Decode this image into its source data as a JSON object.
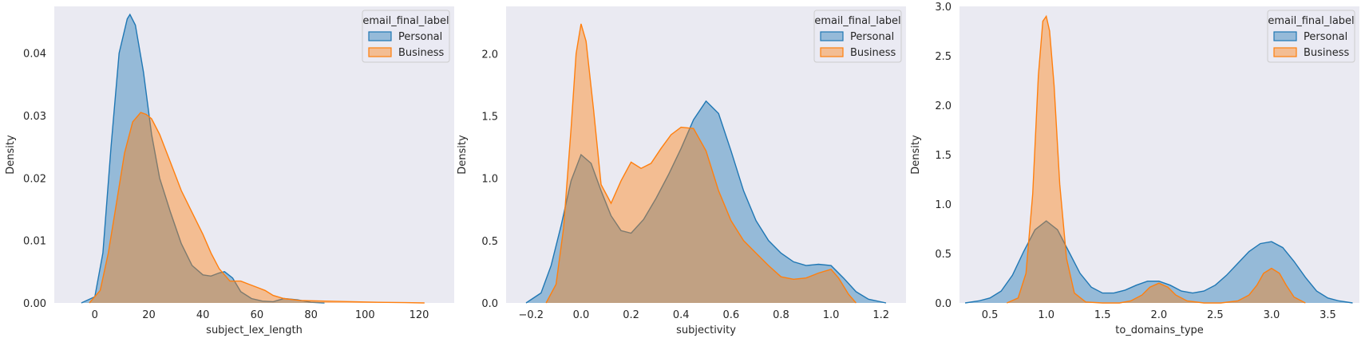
{
  "colors": {
    "personal": "#1f77b4",
    "business": "#ff7f0e"
  },
  "chart_data": [
    {
      "type": "area",
      "xlabel": "subject_lex_length",
      "ylabel": "Density",
      "xlim": [
        -15,
        133
      ],
      "ylim": [
        0,
        0.0475
      ],
      "xticks": [
        0,
        20,
        40,
        60,
        80,
        100,
        120
      ],
      "xtick_labels": [
        "0",
        "20",
        "40",
        "60",
        "80",
        "100",
        "120"
      ],
      "yticks": [
        0,
        0.01,
        0.02,
        0.03,
        0.04
      ],
      "ytick_labels": [
        "0.00",
        "0.01",
        "0.02",
        "0.03",
        "0.04"
      ],
      "grid": false,
      "legend": {
        "title": "email_final_label",
        "placement": "top-right"
      },
      "series": [
        {
          "name": "Personal",
          "x": [
            -5,
            0,
            3,
            6,
            9,
            12,
            13,
            15,
            18,
            21,
            24,
            28,
            32,
            36,
            40,
            43,
            46,
            48,
            51,
            54,
            58,
            62,
            66,
            70,
            75,
            80,
            85
          ],
          "y": [
            0,
            0.001,
            0.008,
            0.025,
            0.04,
            0.0455,
            0.0462,
            0.0445,
            0.037,
            0.027,
            0.02,
            0.0145,
            0.0095,
            0.006,
            0.0045,
            0.0043,
            0.0048,
            0.005,
            0.004,
            0.0018,
            0.0007,
            0.0003,
            0.0002,
            0.0007,
            0.0005,
            0.0001,
            0
          ]
        },
        {
          "name": "Business",
          "x": [
            -2,
            2,
            5,
            8,
            11,
            14,
            17,
            19,
            21,
            24,
            28,
            32,
            36,
            40,
            43,
            46,
            50,
            54,
            57,
            60,
            63,
            66,
            70,
            76,
            85,
            95,
            105,
            115,
            122
          ],
          "y": [
            0,
            0.002,
            0.008,
            0.016,
            0.024,
            0.029,
            0.0305,
            0.0302,
            0.0295,
            0.027,
            0.0225,
            0.018,
            0.0145,
            0.011,
            0.008,
            0.0055,
            0.0035,
            0.0035,
            0.003,
            0.0025,
            0.002,
            0.0012,
            0.0007,
            0.0004,
            0.0003,
            0.0002,
            0.0001,
            5e-05,
            0
          ]
        }
      ]
    },
    {
      "type": "area",
      "xlabel": "subjectivity",
      "ylabel": "Density",
      "xlim": [
        -0.3,
        1.3
      ],
      "ylim": [
        0,
        2.38
      ],
      "xticks": [
        -0.2,
        0,
        0.2,
        0.4,
        0.6,
        0.8,
        1.0,
        1.2
      ],
      "xtick_labels": [
        "−0.2",
        "0.0",
        "0.2",
        "0.4",
        "0.6",
        "0.8",
        "1.0",
        "1.2"
      ],
      "yticks": [
        0,
        0.5,
        1.0,
        1.5,
        2.0
      ],
      "ytick_labels": [
        "0.0",
        "0.5",
        "1.0",
        "1.5",
        "2.0"
      ],
      "grid": false,
      "legend": {
        "title": "email_final_label",
        "placement": "top-right"
      },
      "series": [
        {
          "name": "Personal",
          "x": [
            -0.22,
            -0.16,
            -0.12,
            -0.08,
            -0.04,
            0.0,
            0.04,
            0.08,
            0.12,
            0.16,
            0.2,
            0.25,
            0.3,
            0.35,
            0.4,
            0.45,
            0.5,
            0.55,
            0.6,
            0.65,
            0.7,
            0.75,
            0.8,
            0.85,
            0.9,
            0.95,
            1.0,
            1.05,
            1.1,
            1.15,
            1.22
          ],
          "y": [
            0,
            0.08,
            0.3,
            0.62,
            0.98,
            1.19,
            1.12,
            0.9,
            0.7,
            0.58,
            0.56,
            0.67,
            0.84,
            1.03,
            1.24,
            1.47,
            1.62,
            1.52,
            1.22,
            0.9,
            0.66,
            0.5,
            0.4,
            0.33,
            0.3,
            0.31,
            0.3,
            0.2,
            0.09,
            0.03,
            0
          ]
        },
        {
          "name": "Business",
          "x": [
            -0.14,
            -0.1,
            -0.07,
            -0.04,
            -0.02,
            0.0,
            0.02,
            0.05,
            0.08,
            0.12,
            0.16,
            0.2,
            0.24,
            0.28,
            0.32,
            0.36,
            0.4,
            0.45,
            0.5,
            0.55,
            0.6,
            0.65,
            0.7,
            0.75,
            0.8,
            0.85,
            0.9,
            0.95,
            1.0,
            1.03,
            1.07,
            1.1
          ],
          "y": [
            0,
            0.15,
            0.6,
            1.4,
            2.0,
            2.24,
            2.1,
            1.55,
            0.95,
            0.8,
            0.98,
            1.13,
            1.08,
            1.12,
            1.24,
            1.35,
            1.41,
            1.4,
            1.22,
            0.9,
            0.66,
            0.5,
            0.4,
            0.3,
            0.21,
            0.19,
            0.2,
            0.24,
            0.27,
            0.2,
            0.07,
            0
          ]
        }
      ]
    },
    {
      "type": "area",
      "xlabel": "to_domains_type",
      "ylabel": "Density",
      "xlim": [
        0.23,
        3.78
      ],
      "ylim": [
        0,
        3.0
      ],
      "xticks": [
        0.5,
        1.0,
        1.5,
        2.0,
        2.5,
        3.0,
        3.5
      ],
      "xtick_labels": [
        "0.5",
        "1.0",
        "1.5",
        "2.0",
        "2.5",
        "3.0",
        "3.5"
      ],
      "yticks": [
        0,
        0.5,
        1.0,
        1.5,
        2.0,
        2.5,
        3.0
      ],
      "ytick_labels": [
        "0.0",
        "0.5",
        "1.0",
        "1.5",
        "2.0",
        "2.5",
        "3.0"
      ],
      "grid": false,
      "legend": {
        "title": "email_final_label",
        "placement": "top-right"
      },
      "series": [
        {
          "name": "Personal",
          "x": [
            0.28,
            0.4,
            0.5,
            0.6,
            0.7,
            0.8,
            0.9,
            1.0,
            1.1,
            1.2,
            1.3,
            1.4,
            1.5,
            1.6,
            1.7,
            1.8,
            1.9,
            2.0,
            2.1,
            2.2,
            2.3,
            2.4,
            2.5,
            2.6,
            2.7,
            2.8,
            2.9,
            3.0,
            3.1,
            3.2,
            3.3,
            3.4,
            3.5,
            3.6,
            3.72
          ],
          "y": [
            0,
            0.02,
            0.05,
            0.12,
            0.28,
            0.52,
            0.74,
            0.83,
            0.74,
            0.52,
            0.3,
            0.16,
            0.1,
            0.1,
            0.13,
            0.18,
            0.22,
            0.22,
            0.18,
            0.12,
            0.1,
            0.12,
            0.18,
            0.28,
            0.4,
            0.52,
            0.6,
            0.62,
            0.56,
            0.42,
            0.26,
            0.12,
            0.05,
            0.02,
            0
          ]
        },
        {
          "name": "Business",
          "x": [
            0.65,
            0.75,
            0.82,
            0.88,
            0.93,
            0.97,
            1.0,
            1.03,
            1.07,
            1.12,
            1.18,
            1.25,
            1.35,
            1.5,
            1.65,
            1.75,
            1.85,
            1.92,
            2.0,
            2.08,
            2.15,
            2.25,
            2.4,
            2.55,
            2.7,
            2.8,
            2.87,
            2.93,
            3.0,
            3.07,
            3.13,
            3.2,
            3.3
          ],
          "y": [
            0,
            0.05,
            0.3,
            1.1,
            2.3,
            2.85,
            2.9,
            2.75,
            2.2,
            1.2,
            0.45,
            0.1,
            0.01,
            0,
            0,
            0.02,
            0.08,
            0.16,
            0.2,
            0.16,
            0.08,
            0.02,
            0,
            0,
            0.02,
            0.08,
            0.18,
            0.3,
            0.35,
            0.3,
            0.18,
            0.06,
            0
          ]
        }
      ]
    }
  ]
}
